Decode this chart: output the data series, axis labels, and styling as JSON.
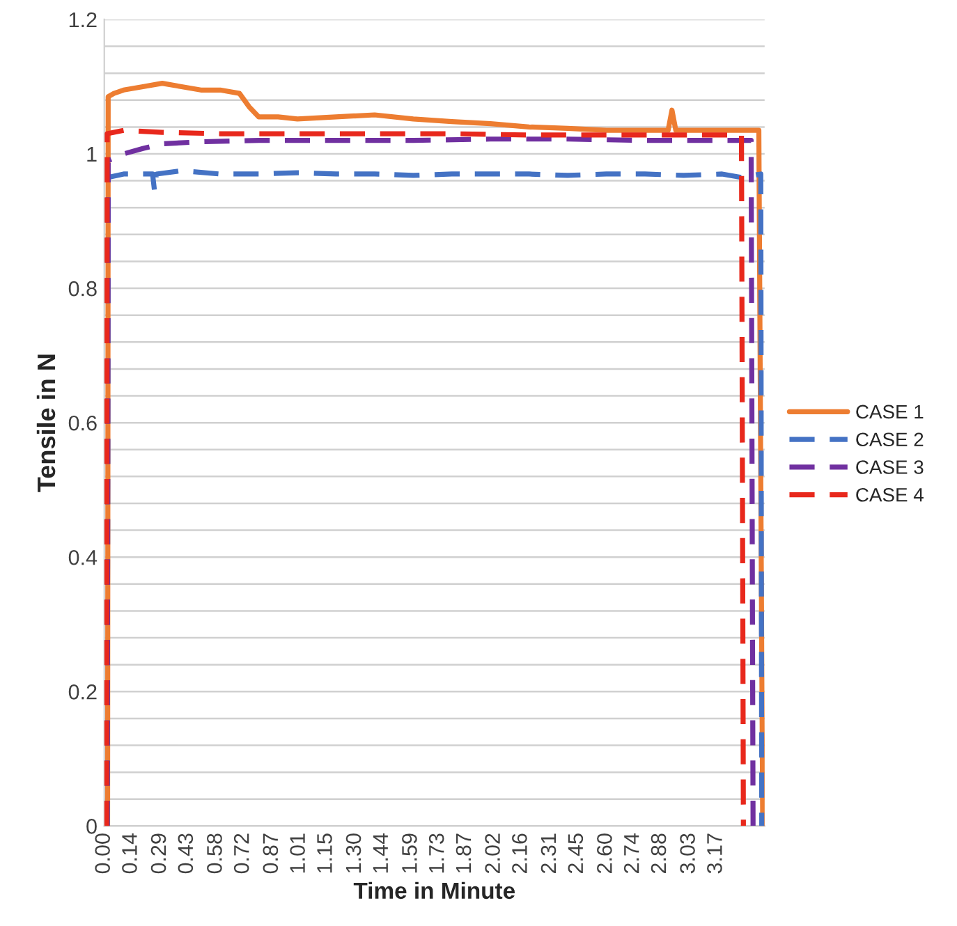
{
  "chart_data": {
    "type": "line",
    "xlabel": "Time in Minute",
    "ylabel": "Tensile in N",
    "xlim": [
      0,
      3.42
    ],
    "ylim": [
      0,
      1.2
    ],
    "xticks": [
      {
        "value": 0.0,
        "label": "0.00"
      },
      {
        "value": 0.14,
        "label": "0.14"
      },
      {
        "value": 0.29,
        "label": "0.29"
      },
      {
        "value": 0.43,
        "label": "0.43"
      },
      {
        "value": 0.58,
        "label": "0.58"
      },
      {
        "value": 0.72,
        "label": "0.72"
      },
      {
        "value": 0.87,
        "label": "0.87"
      },
      {
        "value": 1.01,
        "label": "1.01"
      },
      {
        "value": 1.15,
        "label": "1.15"
      },
      {
        "value": 1.3,
        "label": "1.30"
      },
      {
        "value": 1.44,
        "label": "1.44"
      },
      {
        "value": 1.59,
        "label": "1.59"
      },
      {
        "value": 1.73,
        "label": "1.73"
      },
      {
        "value": 1.87,
        "label": "1.87"
      },
      {
        "value": 2.02,
        "label": "2.02"
      },
      {
        "value": 2.16,
        "label": "2.16"
      },
      {
        "value": 2.31,
        "label": "2.31"
      },
      {
        "value": 2.45,
        "label": "2.45"
      },
      {
        "value": 2.6,
        "label": "2.60"
      },
      {
        "value": 2.74,
        "label": "2.74"
      },
      {
        "value": 2.88,
        "label": "2.88"
      },
      {
        "value": 3.03,
        "label": "3.03"
      },
      {
        "value": 3.17,
        "label": "3.17"
      }
    ],
    "yticks": [
      0,
      {
        "value": 0.04,
        "label": null
      },
      {
        "value": 0.08,
        "label": null
      },
      {
        "value": 0.12,
        "label": null
      },
      {
        "value": 0.16,
        "label": null
      },
      0.2,
      {
        "value": 0.24,
        "label": null
      },
      {
        "value": 0.28,
        "label": null
      },
      {
        "value": 0.32,
        "label": null
      },
      {
        "value": 0.36,
        "label": null
      },
      0.4,
      {
        "value": 0.44,
        "label": null
      },
      {
        "value": 0.48,
        "label": null
      },
      {
        "value": 0.52,
        "label": null
      },
      {
        "value": 0.56,
        "label": null
      },
      0.6,
      {
        "value": 0.64,
        "label": null
      },
      {
        "value": 0.68,
        "label": null
      },
      {
        "value": 0.72,
        "label": null
      },
      {
        "value": 0.76,
        "label": null
      },
      0.8,
      {
        "value": 0.84,
        "label": null
      },
      {
        "value": 0.88,
        "label": null
      },
      {
        "value": 0.92,
        "label": null
      },
      {
        "value": 0.96,
        "label": null
      },
      1,
      {
        "value": 1.04,
        "label": null
      },
      {
        "value": 1.08,
        "label": null
      },
      {
        "value": 1.12,
        "label": null
      },
      {
        "value": 1.16,
        "label": null
      },
      1.2
    ],
    "grid": "y",
    "legend": "right",
    "marker": "none",
    "series": [
      {
        "name": "CASE 1",
        "color": "#ed7d31",
        "line_style": "solid",
        "x": [
          0.017,
          0.02,
          0.05,
          0.1,
          0.2,
          0.3,
          0.4,
          0.5,
          0.6,
          0.7,
          0.75,
          0.8,
          0.9,
          1.0,
          1.2,
          1.4,
          1.6,
          1.8,
          2.0,
          2.2,
          2.4,
          2.6,
          2.8,
          2.92,
          2.94,
          2.96,
          3.2,
          3.39,
          3.41
        ],
        "values": [
          0,
          1.085,
          1.09,
          1.095,
          1.1,
          1.105,
          1.1,
          1.095,
          1.095,
          1.09,
          1.07,
          1.055,
          1.055,
          1.052,
          1.055,
          1.058,
          1.052,
          1.048,
          1.045,
          1.04,
          1.038,
          1.035,
          1.035,
          1.035,
          1.065,
          1.035,
          1.035,
          1.035,
          0
        ]
      },
      {
        "name": "CASE 2",
        "color": "#4472c4",
        "line_style": "dashed",
        "x": [
          0.015,
          0.02,
          0.1,
          0.25,
          0.26,
          0.27,
          0.4,
          0.6,
          0.8,
          1.0,
          1.2,
          1.4,
          1.6,
          1.8,
          2.0,
          2.2,
          2.4,
          2.6,
          2.8,
          3.0,
          3.2,
          3.3,
          3.4,
          3.405
        ],
        "values": [
          0,
          0.965,
          0.97,
          0.97,
          0.945,
          0.97,
          0.975,
          0.97,
          0.97,
          0.972,
          0.97,
          0.97,
          0.968,
          0.97,
          0.97,
          0.97,
          0.968,
          0.97,
          0.97,
          0.968,
          0.97,
          0.965,
          0.97,
          0
        ]
      },
      {
        "name": "CASE 3",
        "color": "#7030a0",
        "line_style": "dashed",
        "x": [
          0.015,
          0.02,
          0.1,
          0.2,
          0.3,
          0.5,
          0.8,
          1.0,
          1.3,
          1.6,
          2.0,
          2.4,
          2.8,
          3.2,
          3.35,
          3.36
        ],
        "values": [
          0,
          0.99,
          1.0,
          1.008,
          1.015,
          1.018,
          1.02,
          1.02,
          1.02,
          1.02,
          1.022,
          1.022,
          1.02,
          1.02,
          1.02,
          0
        ]
      },
      {
        "name": "CASE 4",
        "color": "#e8281c",
        "line_style": "dashed",
        "x": [
          0.012,
          0.015,
          0.1,
          0.3,
          0.6,
          1.0,
          1.4,
          1.8,
          2.2,
          2.6,
          3.0,
          3.3,
          3.31
        ],
        "values": [
          0,
          1.03,
          1.035,
          1.032,
          1.03,
          1.03,
          1.03,
          1.03,
          1.028,
          1.028,
          1.028,
          1.028,
          0
        ]
      }
    ]
  }
}
